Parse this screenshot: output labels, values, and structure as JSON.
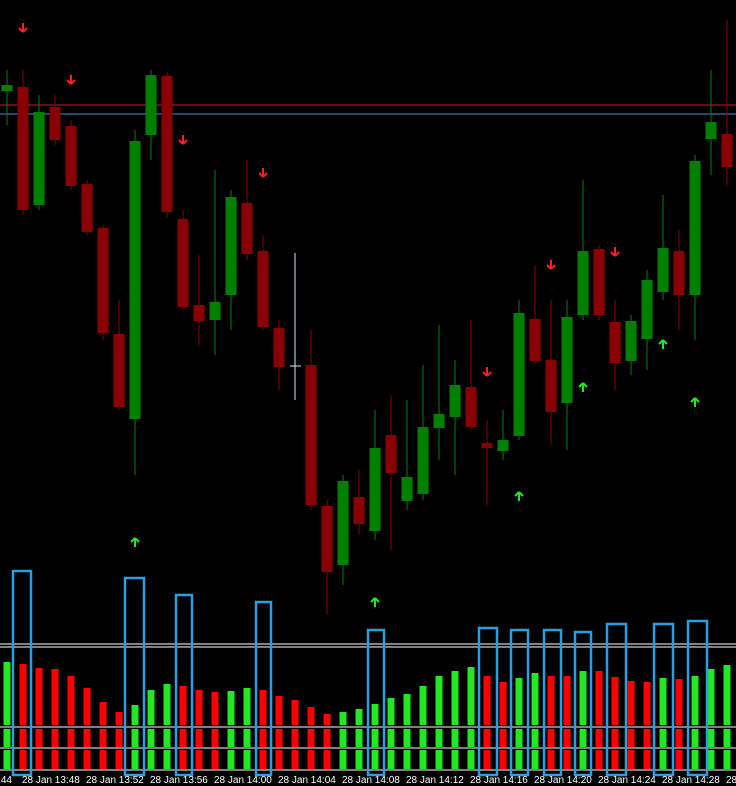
{
  "chart_data": {
    "type": "candlestick",
    "open": [
      549,
      553,
      435,
      533,
      514,
      456,
      412,
      306,
      221,
      505,
      564,
      421,
      335,
      320,
      345,
      437,
      389,
      312,
      null,
      275,
      134,
      75,
      143,
      109,
      205,
      139,
      146,
      212,
      223,
      253,
      197,
      189,
      204,
      321,
      280,
      237,
      325,
      391,
      318,
      279,
      301,
      348,
      389,
      345,
      501,
      506
    ],
    "high": [
      570,
      570,
      545,
      545,
      520,
      460,
      415,
      340,
      510,
      570,
      568,
      430,
      385,
      470,
      450,
      480,
      405,
      320,
      null,
      310,
      140,
      165,
      170,
      230,
      245,
      240,
      275,
      315,
      280,
      320,
      220,
      230,
      340,
      375,
      340,
      340,
      460,
      395,
      340,
      325,
      370,
      445,
      410,
      485,
      570,
      620
    ],
    "low": [
      515,
      425,
      430,
      495,
      450,
      405,
      300,
      230,
      165,
      480,
      422,
      330,
      295,
      285,
      310,
      380,
      310,
      250,
      null,
      130,
      25,
      55,
      105,
      100,
      90,
      130,
      140,
      180,
      165,
      210,
      135,
      180,
      200,
      275,
      195,
      190,
      320,
      320,
      250,
      265,
      270,
      340,
      310,
      300,
      465,
      455
    ],
    "close": [
      555,
      430,
      528,
      500,
      454,
      408,
      307,
      233,
      499,
      565,
      428,
      333,
      319,
      338,
      443,
      386,
      313,
      273,
      null,
      135,
      68,
      159,
      116,
      192,
      167,
      163,
      213,
      226,
      255,
      213,
      192,
      200,
      327,
      279,
      228,
      323,
      389,
      325,
      277,
      319,
      360,
      392,
      345,
      479,
      518,
      473
    ],
    "ylim": [
      0,
      640
    ],
    "color_up": "#008000",
    "color_down": "#8b0000",
    "indicator": {
      "type": "bar",
      "values": [
        63,
        61,
        57,
        56,
        49,
        37,
        23,
        13,
        20,
        35,
        41,
        39,
        35,
        33,
        34,
        37,
        35,
        29,
        25,
        18,
        11,
        13,
        16,
        21,
        27,
        31,
        39,
        49,
        54,
        58,
        49,
        43,
        47,
        52,
        49,
        49,
        54,
        54,
        48,
        44,
        43,
        47,
        46,
        49,
        56,
        60
      ],
      "colors": [
        "#22e822",
        "#ff0000",
        "#ff0000",
        "#ff0000",
        "#ff0000",
        "#ff0000",
        "#ff0000",
        "#ff0000",
        "#22e822",
        "#22e822",
        "#22e822",
        "#ff0000",
        "#ff0000",
        "#ff0000",
        "#22e822",
        "#22e822",
        "#ff0000",
        "#ff0000",
        "#ff0000",
        "#ff0000",
        "#ff0000",
        "#22e822",
        "#22e822",
        "#22e822",
        "#22e822",
        "#22e822",
        "#22e822",
        "#22e822",
        "#22e822",
        "#22e822",
        "#ff0000",
        "#ff0000",
        "#22e822",
        "#22e822",
        "#ff0000",
        "#ff0000",
        "#22e822",
        "#ff0000",
        "#ff0000",
        "#ff0000",
        "#ff0000",
        "#22e822",
        "#ff0000",
        "#22e822",
        "#22e822",
        "#22e822"
      ],
      "ylim": [
        0,
        80
      ]
    },
    "x_labels": [
      "44",
      "28 Jan 13:48",
      "28 Jan 13:52",
      "28 Jan 13:56",
      "28 Jan 14:00",
      "28 Jan 14:04",
      "28 Jan 14:08",
      "28 Jan 14:12",
      "28 Jan 14:16",
      "28 Jan 14:20",
      "28 Jan 14:24",
      "28 Jan 14:28",
      "28"
    ]
  }
}
